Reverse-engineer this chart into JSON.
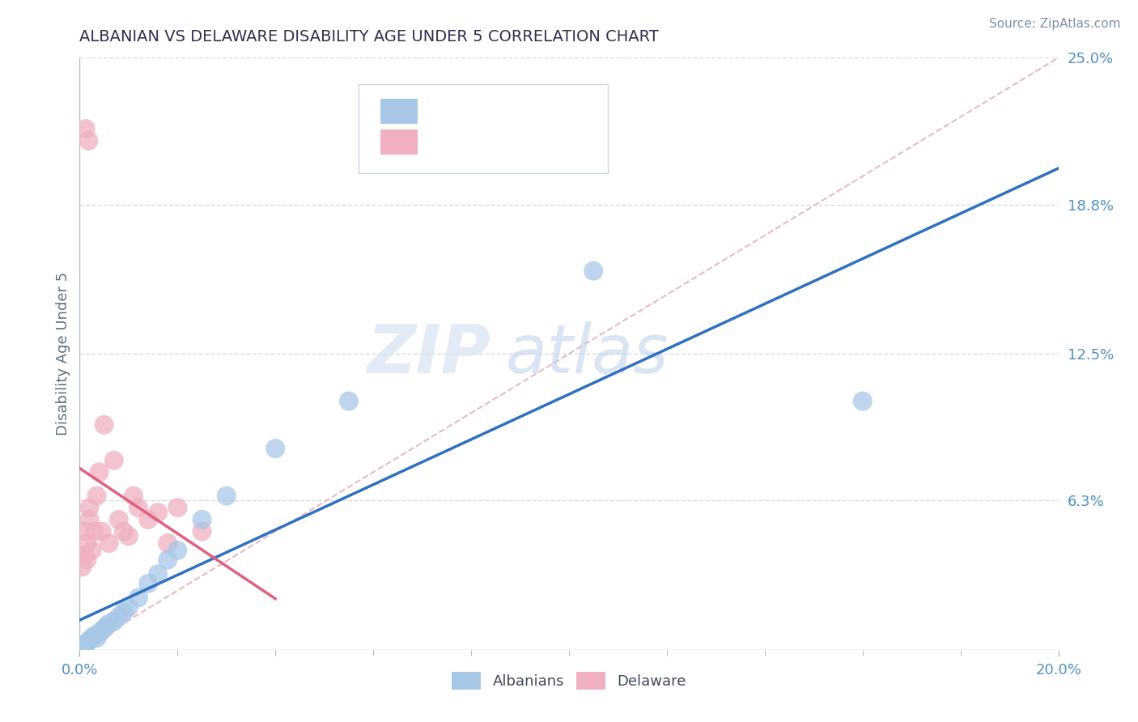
{
  "title": "ALBANIAN VS DELAWARE DISABILITY AGE UNDER 5 CORRELATION CHART",
  "source_text": "Source: ZipAtlas.com",
  "ylabel": "Disability Age Under 5",
  "ytick_labels": [
    "6.3%",
    "12.5%",
    "18.8%",
    "25.0%"
  ],
  "ytick_values": [
    6.3,
    12.5,
    18.8,
    25.0
  ],
  "xmin": 0.0,
  "xmax": 20.0,
  "ymin": 0.0,
  "ymax": 25.0,
  "legend_label_blue": "Albanians",
  "legend_label_pink": "Delaware",
  "blue_scatter_color": "#a8c8e8",
  "pink_scatter_color": "#f0b0c0",
  "blue_line_color": "#3070c0",
  "pink_line_color": "#e06080",
  "diag_line_color": "#e8b0c0",
  "title_color": "#303050",
  "axis_tick_color": "#5090c0",
  "ylabel_color": "#607080",
  "grid_color": "#d0d8e0",
  "albanians_x": [
    0.1,
    0.15,
    0.2,
    0.25,
    0.3,
    0.35,
    0.4,
    0.45,
    0.5,
    0.55,
    0.6,
    0.7,
    0.8,
    0.9,
    1.0,
    1.2,
    1.4,
    1.6,
    1.8,
    2.0,
    2.5,
    3.0,
    4.0,
    5.5,
    10.5,
    16.0
  ],
  "albanians_y": [
    0.2,
    0.3,
    0.4,
    0.5,
    0.6,
    0.5,
    0.7,
    0.8,
    0.9,
    1.0,
    1.1,
    1.2,
    1.4,
    1.6,
    1.8,
    2.2,
    2.8,
    3.2,
    3.8,
    4.2,
    5.5,
    6.5,
    8.5,
    10.5,
    16.0,
    10.5
  ],
  "delaware_x": [
    0.05,
    0.1,
    0.1,
    0.15,
    0.15,
    0.2,
    0.2,
    0.25,
    0.3,
    0.35,
    0.4,
    0.45,
    0.5,
    0.6,
    0.7,
    0.8,
    0.9,
    1.0,
    1.1,
    1.2,
    1.4,
    1.6,
    1.8,
    2.0,
    2.5,
    0.12,
    0.18
  ],
  "delaware_y": [
    3.5,
    4.0,
    5.0,
    3.8,
    4.5,
    5.5,
    6.0,
    4.2,
    5.0,
    6.5,
    7.5,
    5.0,
    9.5,
    4.5,
    8.0,
    5.5,
    5.0,
    4.8,
    6.5,
    6.0,
    5.5,
    5.8,
    4.5,
    6.0,
    5.0,
    22.0,
    21.5
  ]
}
